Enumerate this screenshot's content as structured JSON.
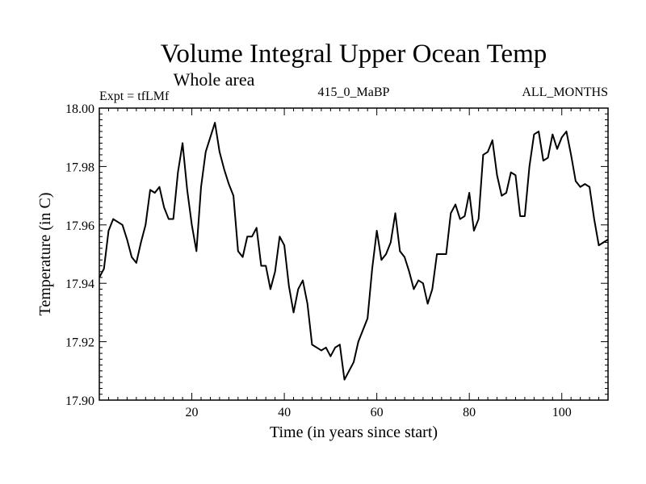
{
  "chart_data": {
    "type": "line",
    "title": "Volume Integral Upper Ocean Temp",
    "subtitle": "Whole area",
    "left_label": "Expt = tfLMf",
    "center_label": "415_0_MaBP",
    "right_label": "ALL_MONTHS",
    "xlabel": "Time (in years since start)",
    "ylabel": "Temperature (in C)",
    "xlim": [
      0,
      110
    ],
    "ylim": [
      17.9,
      18.0
    ],
    "x_ticks": [
      "20",
      "40",
      "60",
      "80",
      "100"
    ],
    "y_ticks": [
      "17.90",
      "17.92",
      "17.94",
      "17.96",
      "17.98",
      "18.00"
    ],
    "grid": false,
    "series": [
      {
        "name": "tfLMf",
        "x": [
          0,
          1,
          2,
          3,
          4,
          5,
          6,
          7,
          8,
          9,
          10,
          11,
          12,
          13,
          14,
          15,
          16,
          17,
          18,
          19,
          20,
          21,
          22,
          23,
          24,
          25,
          26,
          27,
          28,
          29,
          30,
          31,
          32,
          33,
          34,
          35,
          36,
          37,
          38,
          39,
          40,
          41,
          42,
          43,
          44,
          45,
          46,
          47,
          48,
          49,
          50,
          51,
          52,
          53,
          54,
          55,
          56,
          57,
          58,
          59,
          60,
          61,
          62,
          63,
          64,
          65,
          66,
          67,
          68,
          69,
          70,
          71,
          72,
          73,
          74,
          75,
          76,
          77,
          78,
          79,
          80,
          81,
          82,
          83,
          84,
          85,
          86,
          87,
          88,
          89,
          90,
          91,
          92,
          93,
          94,
          95,
          96,
          97,
          98,
          99,
          100,
          101,
          102,
          103,
          104,
          105,
          106,
          107,
          108,
          109,
          110
        ],
        "values": [
          17.942,
          17.945,
          17.958,
          17.962,
          17.961,
          17.96,
          17.955,
          17.949,
          17.947,
          17.954,
          17.96,
          17.972,
          17.971,
          17.973,
          17.966,
          17.962,
          17.962,
          17.978,
          17.988,
          17.972,
          17.96,
          17.951,
          17.973,
          17.985,
          17.99,
          17.995,
          17.985,
          17.979,
          17.974,
          17.97,
          17.951,
          17.949,
          17.956,
          17.956,
          17.959,
          17.946,
          17.946,
          17.938,
          17.944,
          17.956,
          17.953,
          17.939,
          17.93,
          17.938,
          17.941,
          17.933,
          17.919,
          17.918,
          17.917,
          17.918,
          17.915,
          17.918,
          17.919,
          17.907,
          17.91,
          17.913,
          17.92,
          17.924,
          17.928,
          17.945,
          17.958,
          17.948,
          17.95,
          17.954,
          17.964,
          17.951,
          17.949,
          17.944,
          17.938,
          17.941,
          17.94,
          17.933,
          17.938,
          17.95,
          17.95,
          17.95,
          17.964,
          17.967,
          17.962,
          17.963,
          17.971,
          17.958,
          17.962,
          17.984,
          17.985,
          17.989,
          17.977,
          17.97,
          17.971,
          17.978,
          17.977,
          17.963,
          17.963,
          17.98,
          17.991,
          17.992,
          17.982,
          17.983,
          17.991,
          17.986,
          17.99,
          17.992,
          17.984,
          17.975,
          17.973,
          17.974,
          17.973,
          17.962,
          17.953,
          17.954,
          17.955
        ]
      }
    ]
  }
}
